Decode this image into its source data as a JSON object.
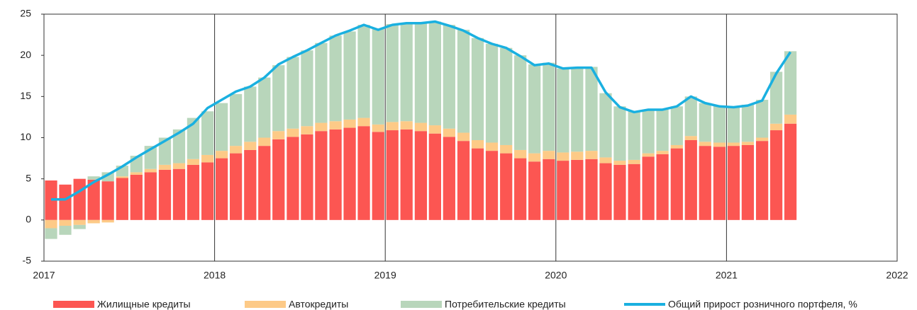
{
  "chart_data": {
    "type": "bar",
    "stacked": true,
    "x": [
      2017,
      2017.083,
      2017.167,
      2017.25,
      2017.333,
      2017.417,
      2017.5,
      2017.583,
      2017.667,
      2017.75,
      2017.833,
      2017.917,
      2018,
      2018.083,
      2018.167,
      2018.25,
      2018.333,
      2018.417,
      2018.5,
      2018.583,
      2018.667,
      2018.75,
      2018.833,
      2018.917,
      2019,
      2019.083,
      2019.167,
      2019.25,
      2019.333,
      2019.417,
      2019.5,
      2019.583,
      2019.667,
      2019.75,
      2019.833,
      2019.917,
      2020,
      2020.083,
      2020.167,
      2020.25,
      2020.333,
      2020.417,
      2020.5,
      2020.583,
      2020.667,
      2020.75,
      2020.833,
      2020.917,
      2021,
      2021.083,
      2021.167,
      2021.25,
      2021.333
    ],
    "series": [
      {
        "name": "Жилищные кредиты",
        "type": "bar",
        "color": "#fc5652",
        "values": [
          4.8,
          4.3,
          5.0,
          4.9,
          4.7,
          5.1,
          5.5,
          5.8,
          6.1,
          6.2,
          6.7,
          7.0,
          7.5,
          8.1,
          8.5,
          9.0,
          9.8,
          10.1,
          10.4,
          10.8,
          11.0,
          11.2,
          11.4,
          10.7,
          10.9,
          11.0,
          10.8,
          10.5,
          10.1,
          9.6,
          8.7,
          8.4,
          8.1,
          7.5,
          7.1,
          7.4,
          7.2,
          7.3,
          7.4,
          6.9,
          6.7,
          6.8,
          7.7,
          8.0,
          8.7,
          9.7,
          9.0,
          8.9,
          9.0,
          9.1,
          9.6,
          10.9,
          11.7
        ]
      },
      {
        "name": "Автокредиты",
        "type": "bar",
        "color": "#fdca87",
        "values": [
          -1.0,
          -0.7,
          -0.6,
          -0.4,
          -0.3,
          0.2,
          0.3,
          0.4,
          0.6,
          0.7,
          0.7,
          0.9,
          0.9,
          0.9,
          1.0,
          1.0,
          1.0,
          1.0,
          1.0,
          1.0,
          1.0,
          1.0,
          1.0,
          0.9,
          1.0,
          1.0,
          1.0,
          1.0,
          1.0,
          1.0,
          1.0,
          1.0,
          1.0,
          1.0,
          1.0,
          1.0,
          1.0,
          1.0,
          1.0,
          0.7,
          0.5,
          0.5,
          0.4,
          0.4,
          0.4,
          0.5,
          0.5,
          0.5,
          0.4,
          0.4,
          0.4,
          0.8,
          1.1
        ]
      },
      {
        "name": "Потребительские кредиты",
        "type": "bar",
        "color": "#b8d6bb",
        "values": [
          -1.3,
          -1.1,
          -0.5,
          0.4,
          1.1,
          1.3,
          2.0,
          2.8,
          3.3,
          4.1,
          5.0,
          5.3,
          5.8,
          6.3,
          6.7,
          7.3,
          8.0,
          8.7,
          9.2,
          9.7,
          10.4,
          10.7,
          11.3,
          11.6,
          11.9,
          11.9,
          12.1,
          12.6,
          12.6,
          12.5,
          12.4,
          12.0,
          11.8,
          11.5,
          10.8,
          10.7,
          10.2,
          10.2,
          10.2,
          7.8,
          6.6,
          5.9,
          5.3,
          5.0,
          4.7,
          4.8,
          4.7,
          4.5,
          4.3,
          4.5,
          4.6,
          6.3,
          7.7
        ]
      },
      {
        "name": "Общий прирост розничного портфеля, %",
        "type": "line",
        "color": "#1ab0e0",
        "values": [
          2.5,
          2.5,
          3.5,
          4.6,
          5.5,
          6.5,
          7.6,
          8.6,
          9.6,
          10.6,
          11.7,
          13.6,
          14.6,
          15.6,
          16.2,
          17.3,
          18.9,
          19.8,
          20.6,
          21.5,
          22.4,
          23.0,
          23.7,
          23.1,
          23.7,
          23.9,
          23.9,
          24.1,
          23.6,
          23.0,
          22.1,
          21.4,
          20.9,
          19.9,
          18.8,
          19.0,
          18.4,
          18.5,
          18.5,
          15.5,
          13.7,
          13.1,
          13.4,
          13.4,
          13.8,
          15.0,
          14.2,
          13.8,
          13.7,
          13.9,
          14.5,
          17.8,
          20.4
        ]
      }
    ],
    "xlim": [
      2017,
      2022
    ],
    "xticks": [
      2017,
      2018,
      2019,
      2020,
      2021,
      2022
    ],
    "ylim": [
      -5,
      25
    ],
    "yticks": [
      -5,
      0,
      5,
      10,
      15,
      20,
      25
    ],
    "grid": "x",
    "legend": "bottom"
  }
}
